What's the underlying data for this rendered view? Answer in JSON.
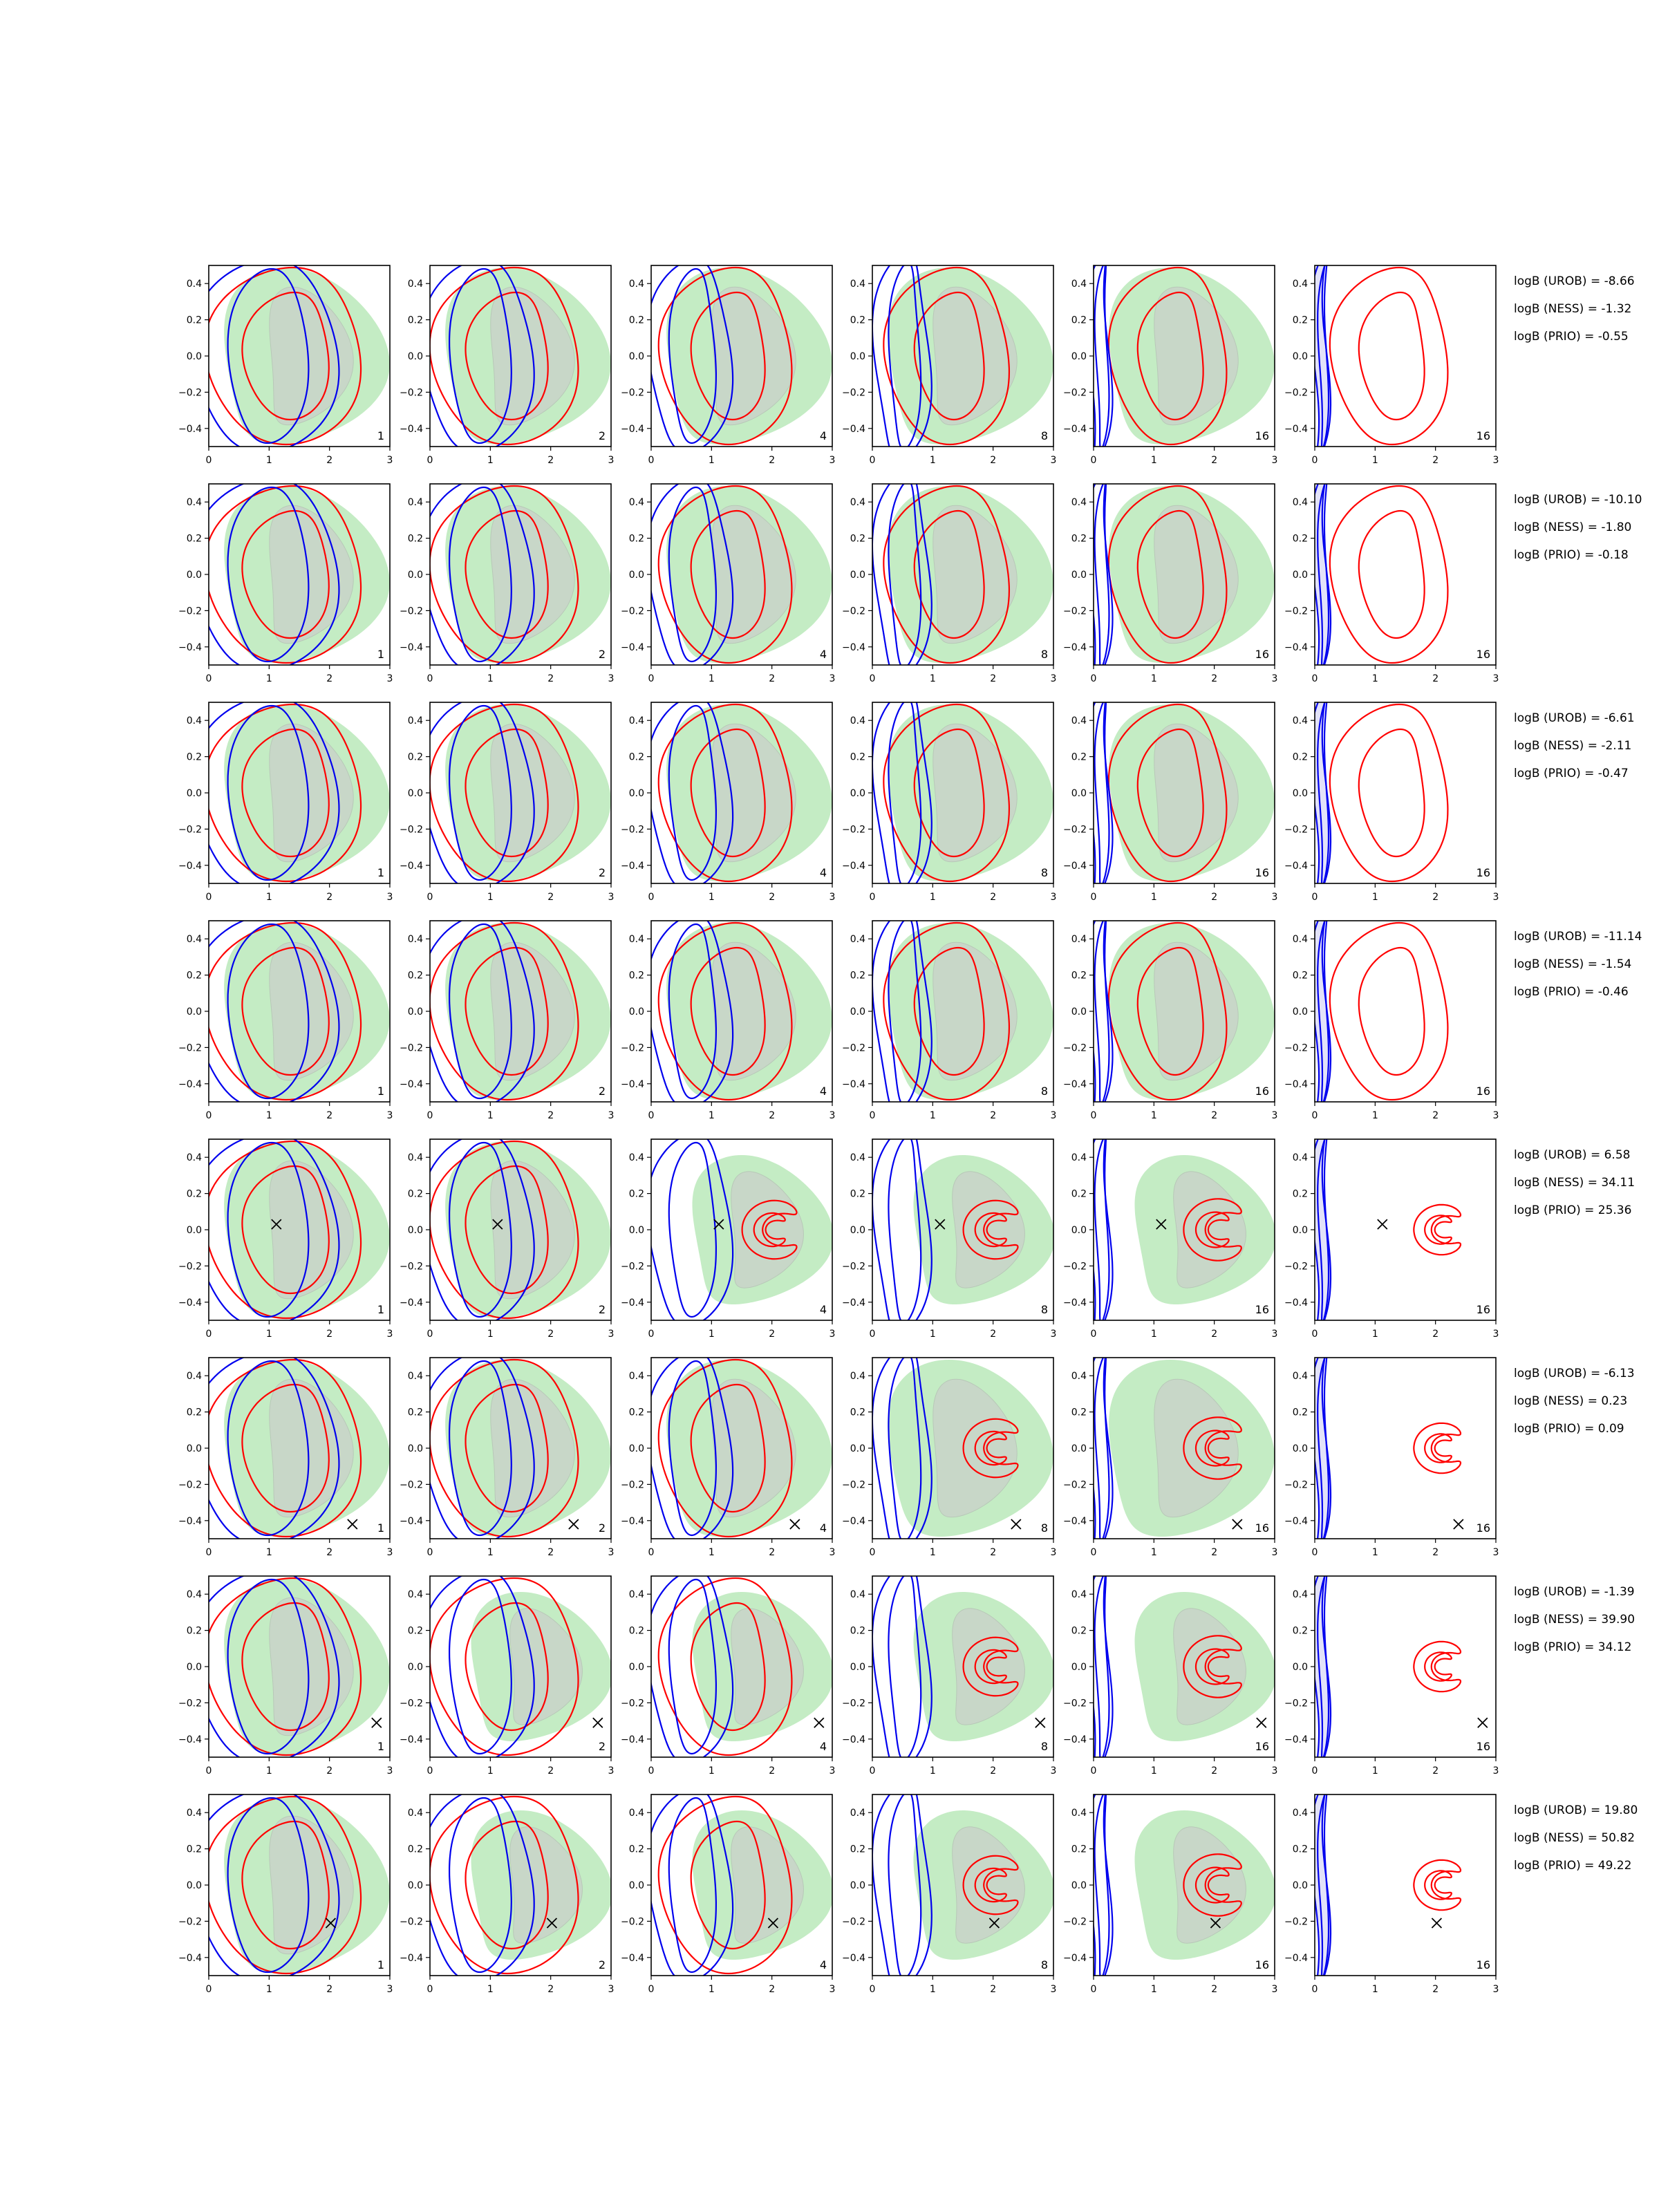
{
  "chart_data": {
    "type": "contour",
    "grid": {
      "rows": 8,
      "cols": 6
    },
    "x_axis": {
      "lim": [
        0,
        3
      ],
      "ticks": [
        "0",
        "1",
        "2",
        "3"
      ]
    },
    "y_axis": {
      "lim": [
        -0.5,
        0.5
      ],
      "ticks": [
        "0.4",
        "0.2",
        "0.0",
        "−0.2",
        "−0.4"
      ]
    },
    "column_labels": [
      "1",
      "2",
      "4",
      "8",
      "16",
      "16"
    ],
    "colors": {
      "target_fill": "#c4ecc4",
      "target_core": "#c9d4c9",
      "red_contour": "#ff0000",
      "blue_contour": "#0000ee",
      "marker": "#000000"
    },
    "rows": [
      {
        "logB": [
          "logB (UROB) = -8.66",
          "logB (NESS) = -1.32",
          "logB (PRIO) = -0.55"
        ],
        "marker": null
      },
      {
        "logB": [
          "logB (UROB) = -10.10",
          "logB (NESS) = -1.80",
          "logB (PRIO) = -0.18"
        ],
        "marker": null
      },
      {
        "logB": [
          "logB (UROB) = -6.61",
          "logB (NESS) = -2.11",
          "logB (PRIO) = -0.47"
        ],
        "marker": null
      },
      {
        "logB": [
          "logB (UROB) = -11.14",
          "logB (NESS) = -1.54",
          "logB (PRIO) = -0.46"
        ],
        "marker": null
      },
      {
        "logB": [
          "logB (UROB) = 6.58",
          "logB (NESS) = 34.11",
          "logB (PRIO) = 25.36"
        ],
        "marker": [
          1.12,
          0.03
        ]
      },
      {
        "logB": [
          "logB (UROB) = -6.13",
          "logB (NESS) = 0.23",
          "logB (PRIO) = 0.09"
        ],
        "marker": [
          2.38,
          -0.42
        ]
      },
      {
        "logB": [
          "logB (UROB) = -1.39",
          "logB (NESS) = 39.90",
          "logB (PRIO) = 34.12"
        ],
        "marker": [
          2.78,
          -0.31
        ]
      },
      {
        "logB": [
          "logB (UROB) = 19.80",
          "logB (NESS) = 50.82",
          "logB (PRIO) = 49.22"
        ],
        "marker": [
          2.02,
          -0.21
        ]
      }
    ]
  }
}
